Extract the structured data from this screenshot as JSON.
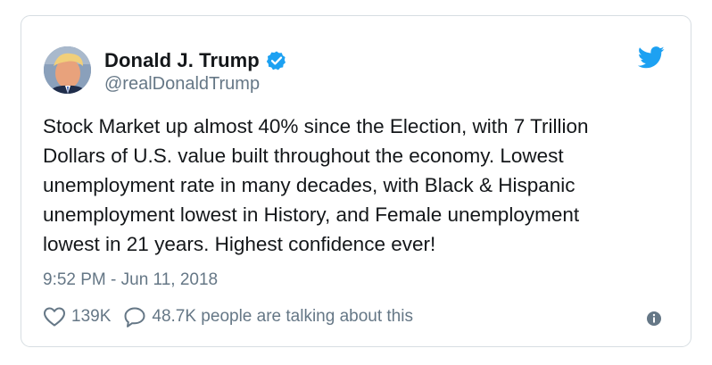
{
  "tweet": {
    "author_name": "Donald J. Trump",
    "handle": "@realDonaldTrump",
    "text": "Stock Market up almost 40% since the Election, with 7 Trillion\nDollars of U.S. value built throughout the economy. Lowest\nunemployment rate in many decades, with Black & Hispanic\nunemployment lowest in History, and Female unemployment\nlowest in 21 years. Highest confidence ever!",
    "timestamp": "9:52 PM - Jun 11, 2018",
    "likes": "139K",
    "talking": "48.7K people are talking about this"
  },
  "icons": {
    "verified": "verified-badge-icon",
    "bird": "twitter-bird-icon",
    "like": "heart-icon",
    "reply": "speech-bubble-icon",
    "info": "info-icon"
  },
  "colors": {
    "accent": "#1da1f2",
    "text": "#14171a",
    "muted": "#657786",
    "border": "#d7dde2"
  }
}
